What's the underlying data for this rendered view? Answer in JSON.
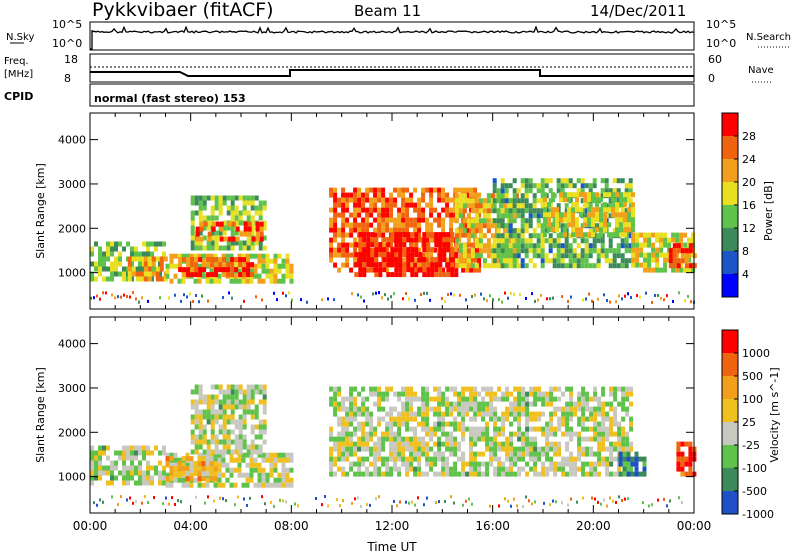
{
  "header": {
    "station": "Pykkvibaer (fitACF)",
    "beam": "Beam 11",
    "date": "14/Dec/2011"
  },
  "strips": {
    "nsky_label": "N.Sky",
    "nsky_ticks": [
      "10^5",
      "10^0"
    ],
    "nsearch_label": "N.Search",
    "nsearch_ticks": [
      "10^5",
      "10^0"
    ],
    "freq_label_line1": "Freq.",
    "freq_label_line2": "[MHz]",
    "freq_ticks": [
      "18",
      "8"
    ],
    "nave_label": "Nave",
    "nave_ticks": [
      "60",
      "0"
    ],
    "cpid_label": "CPID",
    "cpid_text": "normal (fast stereo) 153"
  },
  "chart_data": [
    {
      "type": "heatmap",
      "name": "power",
      "xlabel": "",
      "ylabel": "Slant Range [km]",
      "xlim": [
        0,
        24
      ],
      "ylim": [
        180,
        4600
      ],
      "yticks": [
        "1000",
        "2000",
        "3000",
        "4000"
      ],
      "colorbar_label": "Power [dB]",
      "colorbar_ticks": [
        "28",
        "24",
        "20",
        "16",
        "12",
        "8",
        "4"
      ],
      "colors": [
        "#0000ff",
        "#1a56c8",
        "#3c8a5a",
        "#5fc24a",
        "#e8e020",
        "#f2a01c",
        "#f06410",
        "#ff0000"
      ],
      "regions": [
        {
          "t0": 0.0,
          "t1": 3.0,
          "r0": 800,
          "r1": 1600,
          "level": 0.45
        },
        {
          "t0": 1.5,
          "t1": 3.0,
          "r0": 800,
          "r1": 1300,
          "level": 0.7
        },
        {
          "t0": 3.0,
          "t1": 8.0,
          "r0": 750,
          "r1": 1400,
          "level": 0.55
        },
        {
          "t0": 3.5,
          "t1": 6.5,
          "r0": 900,
          "r1": 1250,
          "level": 0.85
        },
        {
          "t0": 4.0,
          "t1": 7.0,
          "r0": 1500,
          "r1": 2700,
          "level": 0.45
        },
        {
          "t0": 4.2,
          "t1": 6.8,
          "r0": 1700,
          "r1": 2100,
          "level": 0.8
        },
        {
          "t0": 9.5,
          "t1": 15.5,
          "r0": 1000,
          "r1": 2900,
          "level": 0.8
        },
        {
          "t0": 10.5,
          "t1": 14.5,
          "r0": 900,
          "r1": 1900,
          "level": 0.97
        },
        {
          "t0": 14.5,
          "t1": 17.0,
          "r0": 1100,
          "r1": 2700,
          "level": 0.6
        },
        {
          "t0": 16.0,
          "t1": 21.5,
          "r0": 1100,
          "r1": 3100,
          "level": 0.4
        },
        {
          "t0": 18.0,
          "t1": 21.5,
          "r0": 1800,
          "r1": 2800,
          "level": 0.55
        },
        {
          "t0": 21.5,
          "t1": 24.0,
          "r0": 1000,
          "r1": 1900,
          "level": 0.55
        },
        {
          "t0": 23.0,
          "t1": 24.0,
          "r0": 1100,
          "r1": 1600,
          "level": 0.85
        }
      ]
    },
    {
      "type": "heatmap",
      "name": "velocity",
      "xlabel": "Time UT",
      "ylabel": "Slant Range [km]",
      "xlim": [
        0,
        24
      ],
      "ylim": [
        180,
        4600
      ],
      "xticks": [
        "00:00",
        "04:00",
        "08:00",
        "12:00",
        "16:00",
        "20:00",
        "00:00"
      ],
      "yticks": [
        "1000",
        "2000",
        "3000",
        "4000"
      ],
      "colorbar_label": "Velocity [m s^-1]",
      "colorbar_ticks": [
        "1000",
        "500",
        "100",
        "25",
        "-25",
        "-100",
        "-500",
        "-1000"
      ],
      "colors": [
        "#2050c8",
        "#3c8a5a",
        "#5fc24a",
        "#c8c8c0",
        "#f0c020",
        "#f2a01c",
        "#f06410",
        "#ff0000"
      ],
      "regions": [
        {
          "t0": 0.0,
          "t1": 3.0,
          "r0": 800,
          "r1": 1700,
          "level": 0.4
        },
        {
          "t0": 3.0,
          "t1": 8.0,
          "r0": 750,
          "r1": 1500,
          "level": 0.45
        },
        {
          "t0": 3.0,
          "t1": 5.0,
          "r0": 900,
          "r1": 1400,
          "level": 0.62
        },
        {
          "t0": 4.0,
          "t1": 7.0,
          "r0": 1500,
          "r1": 3000,
          "level": 0.42
        },
        {
          "t0": 9.5,
          "t1": 21.5,
          "r0": 1000,
          "r1": 3000,
          "level": 0.42
        },
        {
          "t0": 21.0,
          "t1": 22.0,
          "r0": 1000,
          "r1": 1500,
          "level": 0.15
        },
        {
          "t0": 23.3,
          "t1": 24.0,
          "r0": 1000,
          "r1": 1700,
          "level": 0.9
        }
      ]
    }
  ]
}
